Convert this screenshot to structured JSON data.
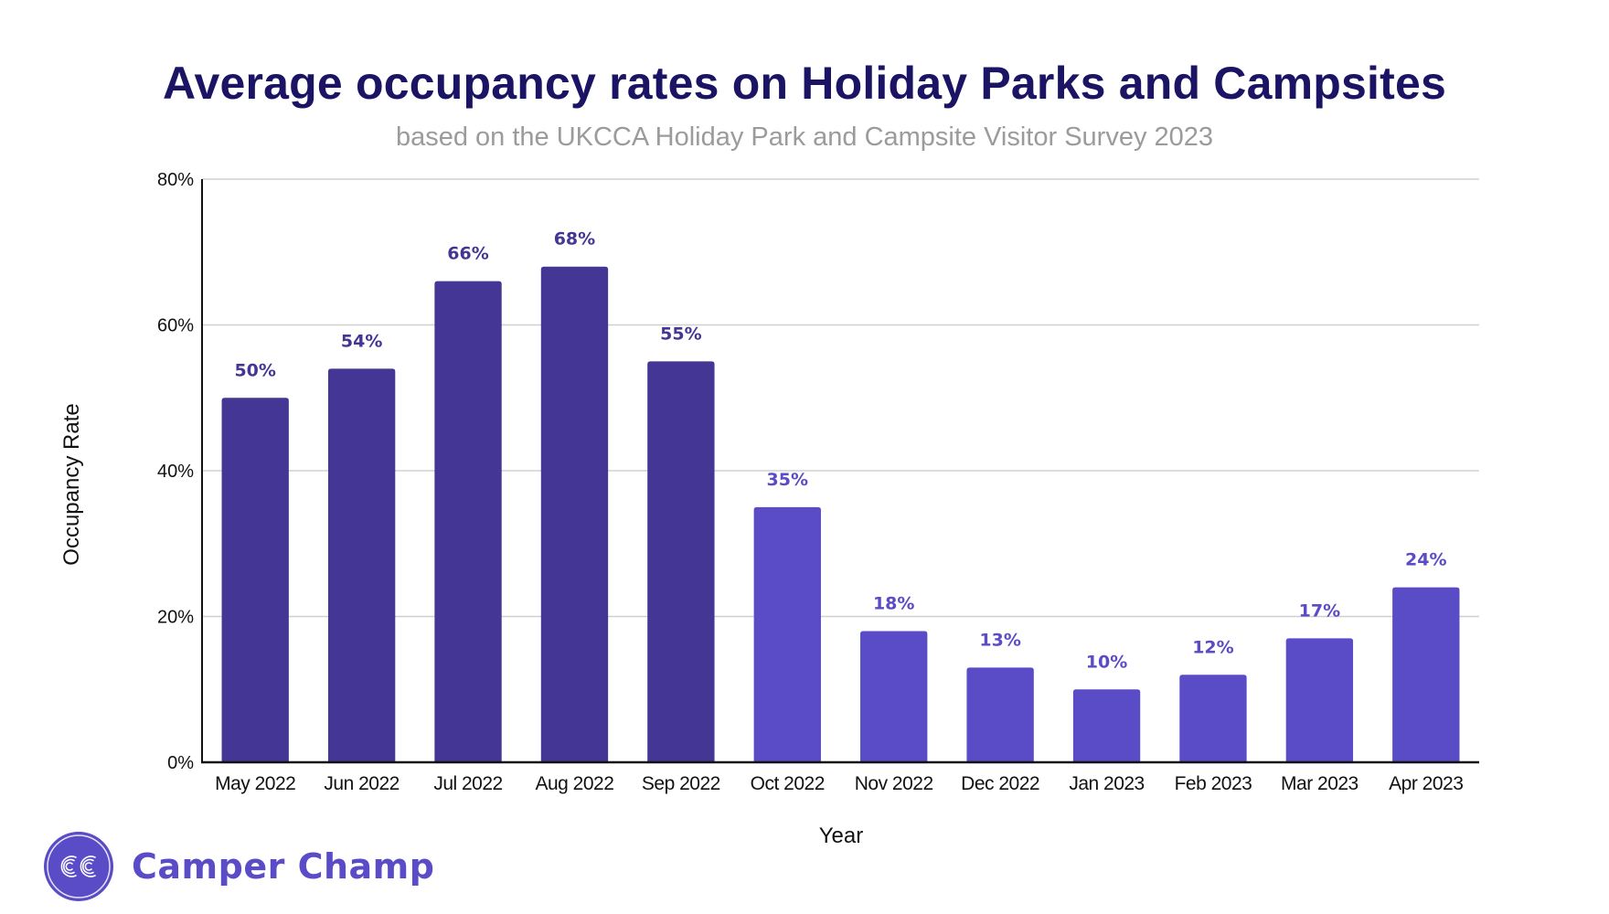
{
  "chart_data": {
    "type": "bar",
    "title": "Average occupancy rates on Holiday Parks and Campsites",
    "subtitle": "based on the UKCCA Holiday Park and Campsite Visitor Survey 2023",
    "xlabel": "Year",
    "ylabel": "Occupancy Rate",
    "ylim": [
      0,
      80
    ],
    "yticks": [
      "0%",
      "20%",
      "40%",
      "60%",
      "80%"
    ],
    "ytick_values": [
      0,
      20,
      40,
      60,
      80
    ],
    "grid": true,
    "categories": [
      "May 2022",
      "Jun 2022",
      "Jul 2022",
      "Aug 2022",
      "Sep 2022",
      "Oct 2022",
      "Nov 2022",
      "Dec 2022",
      "Jan 2023",
      "Feb 2023",
      "Mar 2023",
      "Apr 2023"
    ],
    "values": [
      50,
      54,
      66,
      68,
      55,
      35,
      18,
      13,
      10,
      12,
      17,
      24
    ],
    "data_labels": [
      "50%",
      "54%",
      "66%",
      "68%",
      "55%",
      "35%",
      "18%",
      "13%",
      "10%",
      "12%",
      "17%",
      "24%"
    ],
    "bar_colors": [
      "#433694",
      "#433694",
      "#433694",
      "#433694",
      "#433694",
      "#5a4bc6",
      "#5a4bc6",
      "#5a4bc6",
      "#5a4bc6",
      "#5a4bc6",
      "#5a4bc6",
      "#5a4bc6"
    ]
  },
  "colors": {
    "title": "#1b1464",
    "subtitle": "#9b9b9b",
    "peak_season": "#433694",
    "off_season": "#5a4bc6",
    "gridline": "#d0d0d0",
    "axis": "#111111"
  },
  "brand": {
    "logo_icon": "cc-monogram-icon",
    "logo_initials": "CC",
    "name": "Camper Champ"
  }
}
